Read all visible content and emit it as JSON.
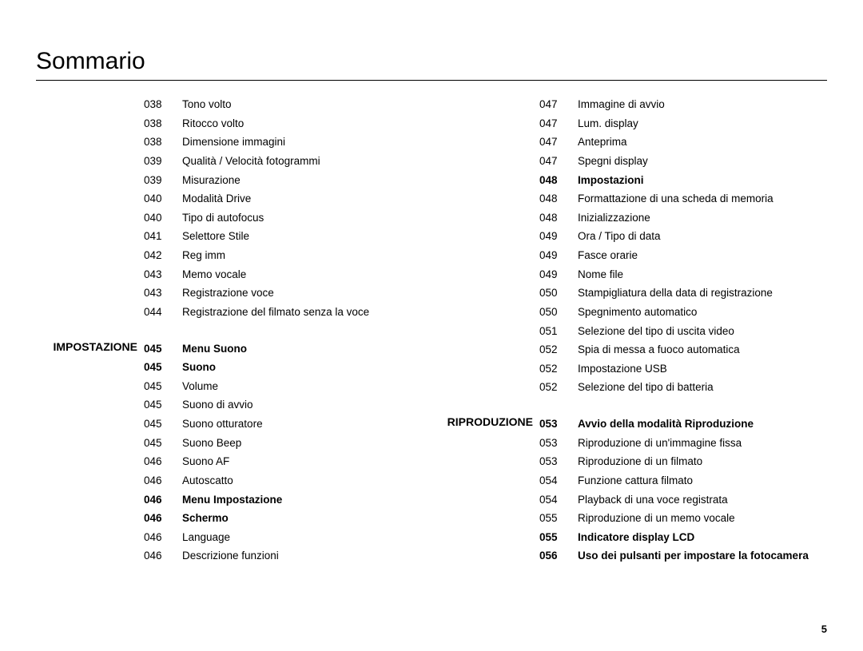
{
  "title": "Sommario",
  "page_number": "5",
  "left_column": [
    {
      "section": "",
      "entries": [
        {
          "page": "038",
          "text": "Tono volto",
          "bold": false
        },
        {
          "page": "038",
          "text": "Ritocco volto",
          "bold": false
        },
        {
          "page": "038",
          "text": "Dimensione immagini",
          "bold": false
        },
        {
          "page": "039",
          "text": "Qualità / Velocità fotogrammi",
          "bold": false
        },
        {
          "page": "039",
          "text": "Misurazione",
          "bold": false
        },
        {
          "page": "040",
          "text": "Modalità Drive",
          "bold": false
        },
        {
          "page": "040",
          "text": "Tipo di autofocus",
          "bold": false
        },
        {
          "page": "041",
          "text": "Selettore Stile",
          "bold": false
        },
        {
          "page": "042",
          "text": "Reg imm",
          "bold": false
        },
        {
          "page": "043",
          "text": "Memo vocale",
          "bold": false
        },
        {
          "page": "043",
          "text": "Registrazione voce",
          "bold": false
        },
        {
          "page": "044",
          "text": "Registrazione del filmato senza la voce",
          "bold": false
        }
      ]
    },
    {
      "section": "IMPOSTAZIONE",
      "entries": [
        {
          "page": "045",
          "text": "Menu Suono",
          "bold": true
        },
        {
          "page": "045",
          "text": "Suono",
          "bold": true
        },
        {
          "page": "045",
          "text": "Volume",
          "bold": false
        },
        {
          "page": "045",
          "text": "Suono di avvio",
          "bold": false
        },
        {
          "page": "045",
          "text": "Suono otturatore",
          "bold": false
        },
        {
          "page": "045",
          "text": "Suono Beep",
          "bold": false
        },
        {
          "page": "046",
          "text": "Suono AF",
          "bold": false
        },
        {
          "page": "046",
          "text": "Autoscatto",
          "bold": false
        },
        {
          "page": "046",
          "text": "Menu Impostazione",
          "bold": true
        },
        {
          "page": "046",
          "text": "Schermo",
          "bold": true
        },
        {
          "page": "046",
          "text": "Language",
          "bold": false
        },
        {
          "page": "046",
          "text": "Descrizione funzioni",
          "bold": false
        }
      ]
    }
  ],
  "right_column": [
    {
      "section": "",
      "entries": [
        {
          "page": "047",
          "text": "Immagine di avvio",
          "bold": false
        },
        {
          "page": "047",
          "text": "Lum. display",
          "bold": false
        },
        {
          "page": "047",
          "text": "Anteprima",
          "bold": false
        },
        {
          "page": "047",
          "text": "Spegni display",
          "bold": false
        },
        {
          "page": "048",
          "text": "Impostazioni",
          "bold": true
        },
        {
          "page": "048",
          "text": "Formattazione di una scheda di memoria",
          "bold": false
        },
        {
          "page": "048",
          "text": "Inizializzazione",
          "bold": false
        },
        {
          "page": "049",
          "text": "Ora / Tipo di data",
          "bold": false
        },
        {
          "page": "049",
          "text": "Fasce orarie",
          "bold": false
        },
        {
          "page": "049",
          "text": "Nome file",
          "bold": false
        },
        {
          "page": "050",
          "text": "Stampigliatura della data di registrazione",
          "bold": false
        },
        {
          "page": "050",
          "text": "Spegnimento automatico",
          "bold": false
        },
        {
          "page": "051",
          "text": "Selezione del tipo di uscita video",
          "bold": false
        },
        {
          "page": "052",
          "text": "Spia di messa a fuoco automatica",
          "bold": false
        },
        {
          "page": "052",
          "text": "Impostazione USB",
          "bold": false
        },
        {
          "page": "052",
          "text": "Selezione del tipo di batteria",
          "bold": false
        }
      ]
    },
    {
      "section": "RIPRODUZIONE",
      "entries": [
        {
          "page": "053",
          "text": "Avvio della modalità Riproduzione",
          "bold": true
        },
        {
          "page": "053",
          "text": "Riproduzione di un'immagine fissa",
          "bold": false
        },
        {
          "page": "053",
          "text": "Riproduzione di un filmato",
          "bold": false
        },
        {
          "page": "054",
          "text": "Funzione cattura filmato",
          "bold": false
        },
        {
          "page": "054",
          "text": "Playback di una voce registrata",
          "bold": false
        },
        {
          "page": "055",
          "text": "Riproduzione di un memo vocale",
          "bold": false
        },
        {
          "page": "055",
          "text": "Indicatore display LCD",
          "bold": true
        },
        {
          "page": "056",
          "text": "Uso dei pulsanti per impostare la fotocamera",
          "bold": true
        }
      ]
    }
  ]
}
